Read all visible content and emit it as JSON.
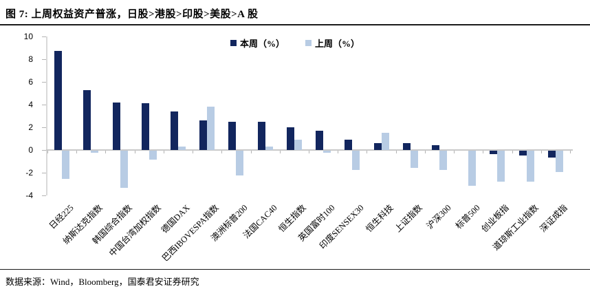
{
  "figure": {
    "title": "图 7: 上周权益资产普涨，日股>港股>印股>美股>A 股",
    "source": "数据来源：Wind，Bloomberg，国泰君安证券研究"
  },
  "chart_data": {
    "type": "bar",
    "title": "上周权益资产普涨，日股>港股>印股>美股>A 股",
    "categories": [
      "日经225",
      "纳斯达克指数",
      "韩国综合指数",
      "中国台湾加权指数",
      "德国DAX",
      "巴西IBOVESPA指数",
      "澳洲标普200",
      "法国CAC40",
      "恒生指数",
      "英国富时100",
      "印度SENSEX30",
      "恒生科技",
      "上证指数",
      "沪深300",
      "标普500",
      "创业板指",
      "道琼斯工业指数",
      "深证成指"
    ],
    "series": [
      {
        "name": "本周（%）",
        "color": "#12265e",
        "values": [
          8.7,
          5.3,
          4.2,
          4.1,
          3.4,
          2.6,
          2.5,
          2.5,
          2.0,
          1.7,
          0.9,
          0.6,
          0.6,
          0.4,
          0.0,
          -0.3,
          -0.4,
          -0.6
        ]
      },
      {
        "name": "上周（%）",
        "color": "#b8cce4",
        "values": [
          -2.5,
          -0.2,
          -3.3,
          -0.8,
          0.3,
          3.8,
          -2.2,
          0.3,
          0.9,
          -0.2,
          -1.7,
          1.5,
          -1.5,
          -1.7,
          -3.1,
          -2.7,
          -2.7,
          -1.9
        ]
      }
    ],
    "xlabel": "",
    "ylabel": "",
    "ylim": [
      -4,
      10
    ],
    "yticks": [
      10,
      8,
      6,
      4,
      2,
      0,
      -2,
      -4
    ],
    "legend_position": "top-center",
    "grid": false,
    "axis_color": "#c9c9c9"
  }
}
